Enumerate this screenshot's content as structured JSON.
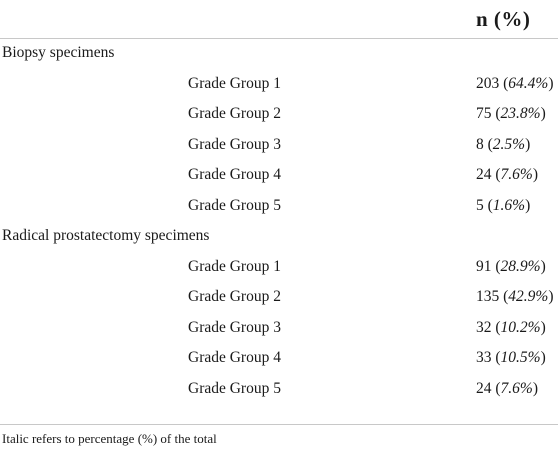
{
  "header": {
    "col_label": "n (%)"
  },
  "sections": [
    {
      "label": "Biopsy specimens",
      "rows": [
        {
          "label": "Grade Group 1",
          "n": "203",
          "pct": "64.4%"
        },
        {
          "label": "Grade Group 2",
          "n": "75",
          "pct": "23.8%"
        },
        {
          "label": "Grade Group 3",
          "n": "8",
          "pct": "2.5%"
        },
        {
          "label": "Grade Group 4",
          "n": "24",
          "pct": "7.6%"
        },
        {
          "label": "Grade Group 5",
          "n": "5",
          "pct": "1.6%"
        }
      ]
    },
    {
      "label": "Radical prostatectomy specimens",
      "rows": [
        {
          "label": "Grade Group 1",
          "n": "91",
          "pct": "28.9%"
        },
        {
          "label": "Grade Group 2",
          "n": "135",
          "pct": "42.9%"
        },
        {
          "label": "Grade Group 3",
          "n": "32",
          "pct": "10.2%"
        },
        {
          "label": "Grade Group 4",
          "n": "33",
          "pct": "10.5%"
        },
        {
          "label": "Grade Group 5",
          "n": "24",
          "pct": "7.6%"
        }
      ]
    }
  ],
  "footer": {
    "note": "Italic refers to percentage (%) of the total"
  }
}
